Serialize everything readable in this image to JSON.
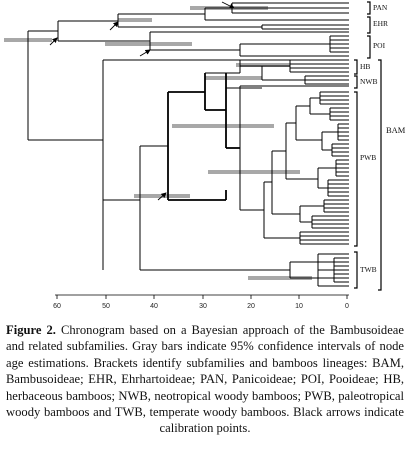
{
  "figure": {
    "axis_ticks": [
      "60",
      "50",
      "40",
      "30",
      "20",
      "10",
      "0"
    ],
    "clade_labels": {
      "pan": "PAN",
      "ehr": "EHR",
      "poi": "POI",
      "hb": "HB",
      "nwb": "NWB",
      "pwb": "PWB",
      "twb": "TWB",
      "bam": "BAM"
    },
    "colors": {
      "branch": "#000000",
      "confidence_bar": "#a8a8a8"
    },
    "icons": {
      "calibration_marker": "arrow-icon"
    }
  },
  "caption": {
    "lead": "Figure 2.",
    "text": "Chronogram based on a Bayesian approach of the Bambusoideae and related subfamilies. Gray bars indicate 95% confidence intervals of node age estimations. Brackets identify subfamilies and bamboos lineages: BAM, Bambusoideae; EHR, Ehrhartoideae; PAN, Panicoideae; POI, Pooideae; HB, herbaceous bamboos; NWB, neotropical woody bamboos; PWB, paleotropical woody bamboos and TWB, temperate woody bamboos. Black arrows indicate calibration points."
  }
}
